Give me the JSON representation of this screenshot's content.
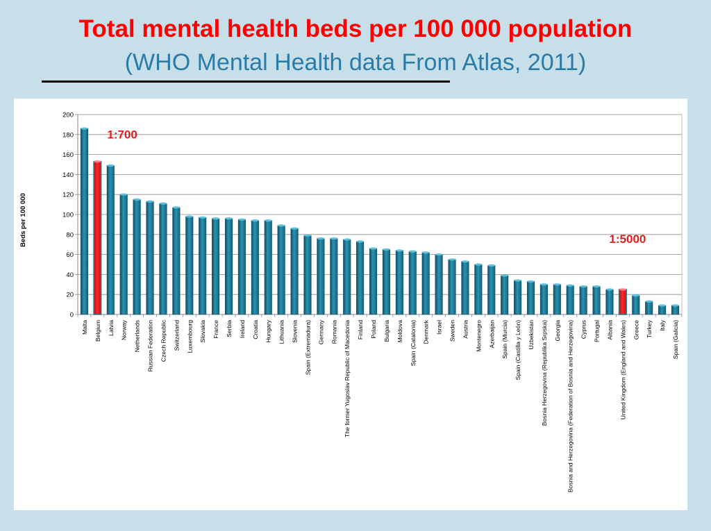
{
  "title": "Total mental health beds per 100 000 population",
  "subtitle": "(WHO Mental Health data From Atlas, 2011)",
  "colors": {
    "title": "#ff0000",
    "subtitle": "#2b7ba8",
    "bar": "#1e7d99",
    "highlight_bar": "#e41c1c",
    "annotation": "#e41c1c",
    "background": "#c6dfe9"
  },
  "chart_data": {
    "type": "bar",
    "title": "",
    "xlabel": "",
    "ylabel": "Beds per 100 000",
    "ylim": [
      0,
      200
    ],
    "yticks": [
      0,
      20,
      40,
      60,
      80,
      100,
      120,
      140,
      160,
      180,
      200
    ],
    "grid": true,
    "categories": [
      "Malta",
      "Belgium",
      "Latvia",
      "Norway",
      "Netherlands",
      "Russian Federation",
      "Czech Republic",
      "Switzerland",
      "Luxembourg",
      "Slovakia",
      "France",
      "Serbia",
      "Ireland",
      "Croatia",
      "Hungary",
      "Lithuania",
      "Slovenia",
      "Spain (Extremadura)",
      "Germany",
      "Romania",
      "The former Yugoslav Republic of Macedonia",
      "Finland",
      "Poland",
      "Bulgaria",
      "Moldova",
      "Spain (Catalonia)",
      "Denmark",
      "Israel",
      "Sweden",
      "Austria",
      "Montenegro",
      "Azerbaijan",
      "Spain (Murcia)",
      "Spain (Castilla y León)",
      "Uzbekistan",
      "Bosnia Herzegovina (Republika Srpska)",
      "Georgia",
      "Bosnia and Herzegovina (Federation of Bosnia and Herzegovina)",
      "Cyprus",
      "Portugal",
      "Albania",
      "United Kingdom (England and Wales)",
      "Greece",
      "Turkey",
      "Italy",
      "Spain (Galicia)"
    ],
    "values": [
      186,
      153,
      149,
      120,
      115,
      113,
      111,
      107,
      98,
      97,
      96,
      96,
      95,
      94,
      94,
      89,
      86,
      79,
      76,
      76,
      75,
      73,
      66,
      65,
      64,
      63,
      62,
      60,
      55,
      53,
      50,
      49,
      39,
      34,
      33,
      30,
      30,
      29,
      28,
      28,
      25,
      25,
      19,
      13,
      9,
      9
    ],
    "highlighted": [
      "Belgium",
      "United Kingdom (England and Wales)"
    ],
    "annotations": [
      {
        "text": "1:700",
        "category": "Belgium"
      },
      {
        "text": "1:5000",
        "category": "United Kingdom (England and Wales)"
      }
    ]
  }
}
